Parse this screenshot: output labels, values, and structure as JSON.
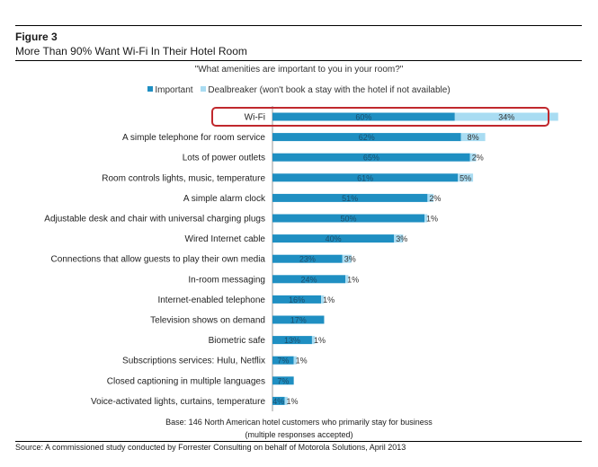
{
  "figure_label": "Figure 3",
  "figure_title": "More Than 90% Want Wi-Fi In Their Hotel Room",
  "chart_data": {
    "type": "bar",
    "orientation": "horizontal",
    "stacked": true,
    "title": "\"What amenities are important to you in your room?\"",
    "categories": [
      "Wi-Fi",
      "A simple telephone for room service",
      "Lots of power outlets",
      "Room controls lights, music, temperature",
      "A simple alarm clock",
      "Adjustable desk and chair with universal charging plugs",
      "Wired Internet cable",
      "Connections that allow guests to play their own media",
      "In-room messaging",
      "Internet-enabled telephone",
      "Television shows on demand",
      "Biometric safe",
      "Subscriptions services: Hulu, Netflix",
      "Closed captioning in multiple languages",
      "Voice-activated lights, curtains, temperature"
    ],
    "series": [
      {
        "name": "Important",
        "color": "#1f8fc2",
        "values": [
          60,
          62,
          65,
          61,
          51,
          50,
          40,
          23,
          24,
          16,
          17,
          13,
          7,
          7,
          4
        ],
        "labels": [
          "60%",
          "62%",
          "65%",
          "61%",
          "51%",
          "50%",
          "40%",
          "23%",
          "24%",
          "16%",
          "17%",
          "13%",
          "7%",
          "7%",
          "4%"
        ]
      },
      {
        "name": "Dealbreaker (won't book a stay with the hotel if not available)",
        "color": "#a9dcf2",
        "values": [
          34,
          8,
          2,
          5,
          2,
          1,
          3,
          3,
          1,
          1,
          0,
          1,
          1,
          0,
          1
        ],
        "labels": [
          "34%",
          "8%",
          "2%",
          "5%",
          "2%",
          "1%",
          "3%",
          "3%",
          "1%",
          "1%",
          "",
          "1%",
          "1%",
          "",
          "1%"
        ]
      }
    ],
    "xlim": [
      0,
      100
    ],
    "grid": false,
    "legend_position": "top",
    "highlight_color": "#c0282d"
  },
  "notes": {
    "base_line1": "Base: 146 North American hotel customers who primarily stay for business",
    "base_line2": "(multiple responses accepted)",
    "source": "Source: A commissioned study conducted by Forrester Consulting on behalf of Motorola Solutions, April 2013"
  }
}
